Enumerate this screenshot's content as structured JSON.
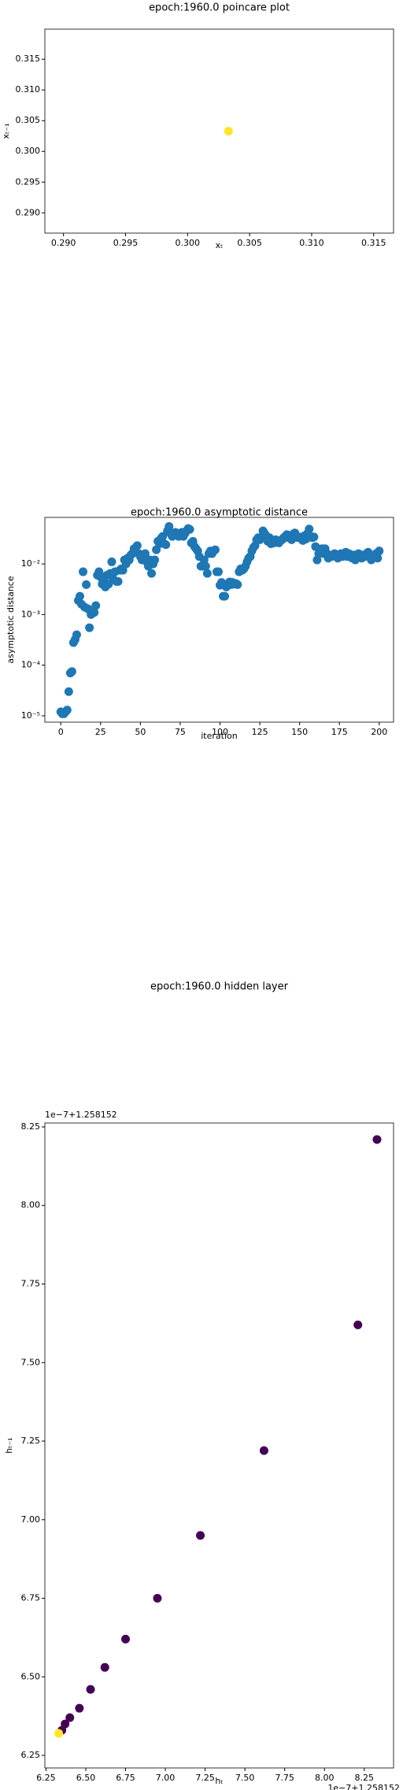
{
  "chart_data": [
    {
      "type": "scatter",
      "title": "epoch:1960.0 poincare plot",
      "x_label": "xₜ",
      "y_label": "xₜ₋₁",
      "x": [
        0.3033
      ],
      "y": [
        0.3033
      ],
      "color": "#fde725",
      "xlim": [
        0.2885,
        0.3166
      ],
      "ylim": [
        0.2867,
        0.3199
      ],
      "xticks": [
        {
          "value": 0.29,
          "label": "0.290"
        },
        0.295,
        {
          "value": 0.3,
          "label": "0.300"
        },
        0.305,
        {
          "value": 0.31,
          "label": "0.310"
        },
        0.315
      ],
      "yticks": [
        {
          "value": 0.29,
          "label": "0.290"
        },
        0.295,
        {
          "value": 0.3,
          "label": "0.300"
        },
        0.305,
        {
          "value": 0.31,
          "label": "0.310"
        },
        0.315
      ]
    },
    {
      "type": "scatter",
      "title": "epoch:1960.0 asymptotic distance",
      "x_label": "iteration",
      "y_label": "asymptotic distance",
      "yscale": "log",
      "color": "#1f77b4",
      "x": [
        0,
        1,
        2,
        3,
        4,
        5,
        6,
        7,
        8,
        9,
        10,
        11,
        12,
        13,
        14,
        15,
        16,
        17,
        18,
        19,
        20,
        21,
        22,
        23,
        24,
        25,
        26,
        27,
        28,
        29,
        30,
        31,
        32,
        33,
        34,
        35,
        36,
        37,
        38,
        39,
        40,
        41,
        42,
        43,
        44,
        45,
        46,
        47,
        48,
        49,
        50,
        51,
        52,
        53,
        54,
        55,
        56,
        57,
        58,
        59,
        60,
        61,
        62,
        63,
        64,
        65,
        66,
        67,
        68,
        69,
        70,
        71,
        72,
        73,
        74,
        75,
        76,
        77,
        78,
        79,
        80,
        81,
        82,
        83,
        84,
        85,
        86,
        87,
        88,
        89,
        90,
        91,
        92,
        93,
        94,
        95,
        96,
        97,
        98,
        99,
        100,
        101,
        102,
        103,
        104,
        105,
        106,
        107,
        108,
        109,
        110,
        111,
        112,
        113,
        114,
        115,
        116,
        117,
        118,
        119,
        120,
        121,
        122,
        123,
        124,
        125,
        126,
        127,
        128,
        129,
        130,
        131,
        132,
        133,
        134,
        135,
        136,
        137,
        138,
        139,
        140,
        141,
        142,
        143,
        144,
        145,
        146,
        147,
        148,
        149,
        150,
        151,
        152,
        153,
        154,
        155,
        156,
        157,
        158,
        159,
        160,
        161,
        162,
        163,
        164,
        165,
        166,
        167,
        168,
        169,
        170,
        171,
        172,
        173,
        174,
        175,
        176,
        177,
        178,
        179,
        180,
        181,
        182,
        183,
        184,
        185,
        186,
        187,
        188,
        189,
        190,
        191,
        192,
        193,
        194,
        195,
        196,
        197,
        198,
        199,
        200
      ],
      "y": [
        1.2e-05,
        1.1e-05,
        1.1e-05,
        1.2e-05,
        1.3e-05,
        3e-05,
        7e-05,
        7.5e-05,
        0.00028,
        0.00032,
        0.0004,
        0.0019,
        0.0023,
        0.0016,
        0.007,
        0.0014,
        0.0039,
        0.0013,
        0.00055,
        0.001,
        0.0012,
        0.0011,
        0.0015,
        0.006,
        0.007,
        0.0055,
        0.004,
        0.005,
        0.0035,
        0.006,
        0.004,
        0.0065,
        0.011,
        0.005,
        0.007,
        0.0045,
        0.0045,
        0.0075,
        0.008,
        0.0075,
        0.012,
        0.01,
        0.013,
        0.012,
        0.015,
        0.016,
        0.02,
        0.017,
        0.023,
        0.016,
        0.014,
        0.012,
        0.013,
        0.016,
        0.011,
        0.009,
        0.012,
        0.0065,
        0.01,
        0.012,
        0.019,
        0.028,
        0.025,
        0.032,
        0.035,
        0.025,
        0.024,
        0.045,
        0.055,
        0.04,
        0.035,
        0.038,
        0.042,
        0.04,
        0.035,
        0.038,
        0.042,
        0.035,
        0.04,
        0.045,
        0.05,
        0.048,
        0.026,
        0.028,
        0.022,
        0.02,
        0.018,
        0.014,
        0.009,
        0.009,
        0.012,
        0.009,
        0.0065,
        0.016,
        0.018,
        0.016,
        0.018,
        0.019,
        0.007,
        0.007,
        0.0038,
        0.0043,
        0.0023,
        0.0023,
        0.0035,
        0.004,
        0.0044,
        0.0039,
        0.0043,
        0.004,
        0.0041,
        0.0039,
        0.007,
        0.008,
        0.0075,
        0.008,
        0.009,
        0.011,
        0.013,
        0.014,
        0.018,
        0.021,
        0.023,
        0.03,
        0.033,
        0.03,
        0.034,
        0.045,
        0.04,
        0.036,
        0.028,
        0.033,
        0.025,
        0.028,
        0.026,
        0.03,
        0.029,
        0.026,
        0.029,
        0.03,
        0.033,
        0.035,
        0.038,
        0.033,
        0.036,
        0.03,
        0.039,
        0.041,
        0.035,
        0.033,
        0.034,
        0.032,
        0.029,
        0.036,
        0.031,
        0.04,
        0.049,
        0.035,
        0.033,
        0.034,
        0.022,
        0.012,
        0.016,
        0.018,
        0.02,
        0.016,
        0.02,
        0.016,
        0.013,
        0.015,
        0.014,
        0.015,
        0.016,
        0.014,
        0.013,
        0.015,
        0.016,
        0.014,
        0.015,
        0.017,
        0.014,
        0.016,
        0.014,
        0.013,
        0.015,
        0.012,
        0.015,
        0.016,
        0.014,
        0.013,
        0.015,
        0.014,
        0.016,
        0.017,
        0.015,
        0.012,
        0.013,
        0.014,
        0.016,
        0.013,
        0.018
      ],
      "xlim": [
        -10,
        209
      ],
      "ylim": [
        7.5e-06,
        0.083
      ],
      "xticks": [
        0,
        25,
        50,
        75,
        100,
        125,
        150,
        175,
        200
      ],
      "yticks": [
        {
          "value": 1e-05,
          "label": "10⁻⁵"
        },
        {
          "value": 0.0001,
          "label": "10⁻⁴"
        },
        {
          "value": 0.001,
          "label": "10⁻³"
        },
        {
          "value": 0.01,
          "label": "10⁻²"
        }
      ]
    },
    {
      "type": "scatter",
      "title": "epoch:1960.0 hidden layer",
      "x_label": "hₜ",
      "y_label": "hₜ₋₁",
      "x_offset_label": "1e−7+1.258152",
      "y_offset_label": "1e−7+1.258152",
      "x": [
        6.35,
        6.37,
        6.4,
        6.46,
        6.53,
        6.62,
        6.75,
        6.95,
        7.22,
        7.62,
        8.21,
        8.33,
        6.33
      ],
      "y": [
        6.33,
        6.35,
        6.37,
        6.4,
        6.46,
        6.53,
        6.62,
        6.75,
        6.95,
        7.22,
        7.62,
        8.21,
        6.32
      ],
      "colors": [
        "#440154",
        "#440154",
        "#440154",
        "#440154",
        "#440154",
        "#440154",
        "#440154",
        "#440154",
        "#440154",
        "#440154",
        "#440154",
        "#440154",
        "#fde725"
      ],
      "xlim": [
        6.243,
        8.434
      ],
      "ylim": [
        6.21,
        8.2625
      ],
      "xticks": [
        6.25,
        {
          "value": 6.5,
          "label": "6.50"
        },
        6.75,
        {
          "value": 7,
          "label": "7.00"
        },
        7.25,
        {
          "value": 7.5,
          "label": "7.50"
        },
        7.75,
        {
          "value": 8,
          "label": "8.00"
        },
        8.25
      ],
      "yticks": [
        6.25,
        {
          "value": 6.5,
          "label": "6.50"
        },
        6.75,
        {
          "value": 7,
          "label": "7.00"
        },
        7.25,
        {
          "value": 7.5,
          "label": "7.50"
        },
        7.75,
        {
          "value": 8,
          "label": "8.00"
        },
        8.25
      ]
    }
  ]
}
